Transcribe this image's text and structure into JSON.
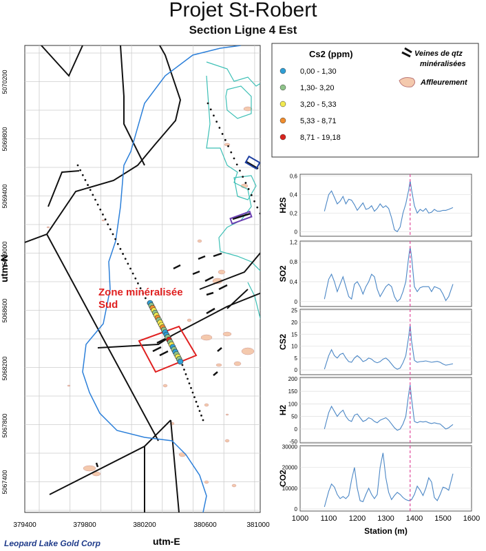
{
  "title": "Projet St-Robert",
  "subtitle": "Section Ligne 4 Est",
  "company": "Leopard Lake Gold Corp",
  "map": {
    "x_label": "utm-E",
    "y_label": "utm-N",
    "x_ticks": [
      "379400",
      "379800",
      "380200",
      "380600",
      "381000"
    ],
    "y_ticks": [
      "5070200",
      "5069800",
      "5069400",
      "5069000",
      "5068600",
      "5068200",
      "5067800",
      "5067400"
    ],
    "zone_label_line1": "Zone minéralisée",
    "zone_label_line2": "Sud",
    "colors": {
      "river": "#2b7fd9",
      "road": "#111111",
      "outline": "#3bbfb5",
      "zone": "#e02020",
      "outcrop": "#f4c9ad"
    }
  },
  "legend": {
    "title": "Cs2 (ppm)",
    "classes": [
      {
        "label": "0,00 - 1,30",
        "color": "#2f9fd6"
      },
      {
        "label": "1,30- 3,20",
        "color": "#8fc48a"
      },
      {
        "label": "3,20 - 5,33",
        "color": "#f2ea50"
      },
      {
        "label": "5,33 - 8,71",
        "color": "#f08d2e"
      },
      {
        "label": "8,71 - 19,18",
        "color": "#d9241e"
      }
    ],
    "veins_label_1": "Veines de qtz",
    "veins_label_2": "minéralisées",
    "outcrop_label": "Affleurement"
  },
  "chart_data": {
    "type": "line",
    "x_label": "Station (m)",
    "x_ticks": [
      1000,
      1100,
      1200,
      1300,
      1400,
      1500,
      1600
    ],
    "xlim": [
      1000,
      1600
    ],
    "marker_x": 1385,
    "marker_color": "#e0489a",
    "line_color": "#4a86c5",
    "panels": [
      {
        "name": "H2S",
        "ylim": [
          -0.05,
          0.62
        ],
        "ticks": [
          "0,6",
          "0,4",
          "0,2",
          "0"
        ],
        "tick_vals": [
          0.6,
          0.4,
          0.2,
          0
        ],
        "x": [
          1085,
          1100,
          1110,
          1120,
          1130,
          1140,
          1150,
          1160,
          1170,
          1180,
          1190,
          1200,
          1210,
          1220,
          1230,
          1240,
          1250,
          1260,
          1270,
          1280,
          1290,
          1300,
          1310,
          1320,
          1330,
          1340,
          1350,
          1360,
          1370,
          1380,
          1385,
          1390,
          1400,
          1410,
          1420,
          1430,
          1440,
          1450,
          1460,
          1470,
          1480,
          1490,
          1500,
          1510,
          1520,
          1535
        ],
        "values": [
          0.22,
          0.4,
          0.44,
          0.37,
          0.3,
          0.33,
          0.38,
          0.3,
          0.35,
          0.34,
          0.29,
          0.23,
          0.27,
          0.31,
          0.24,
          0.25,
          0.28,
          0.22,
          0.25,
          0.3,
          0.26,
          0.28,
          0.25,
          0.15,
          0.02,
          0.0,
          0.05,
          0.2,
          0.3,
          0.45,
          0.55,
          0.45,
          0.28,
          0.2,
          0.24,
          0.22,
          0.25,
          0.2,
          0.21,
          0.24,
          0.22,
          0.22,
          0.23,
          0.23,
          0.24,
          0.26
        ]
      },
      {
        "name": "SO2",
        "ylim": [
          -0.1,
          1.22
        ],
        "ticks": [
          "1,2",
          "0,8",
          "0,4",
          "0"
        ],
        "tick_vals": [
          1.2,
          0.8,
          0.4,
          0
        ],
        "x": [
          1085,
          1100,
          1110,
          1120,
          1130,
          1140,
          1150,
          1160,
          1170,
          1180,
          1190,
          1200,
          1210,
          1220,
          1230,
          1240,
          1250,
          1260,
          1270,
          1280,
          1290,
          1300,
          1310,
          1320,
          1330,
          1340,
          1350,
          1360,
          1370,
          1380,
          1385,
          1390,
          1400,
          1410,
          1420,
          1430,
          1440,
          1450,
          1460,
          1470,
          1480,
          1490,
          1500,
          1510,
          1520,
          1535
        ],
        "values": [
          0.05,
          0.45,
          0.55,
          0.4,
          0.2,
          0.35,
          0.5,
          0.3,
          0.1,
          0.05,
          0.35,
          0.4,
          0.3,
          0.15,
          0.3,
          0.4,
          0.55,
          0.5,
          0.25,
          0.1,
          0.2,
          0.3,
          0.35,
          0.3,
          0.1,
          0.0,
          0.05,
          0.2,
          0.4,
          0.9,
          1.1,
          0.9,
          0.3,
          0.2,
          0.28,
          0.3,
          0.3,
          0.3,
          0.2,
          0.3,
          0.28,
          0.25,
          0.15,
          0.02,
          0.1,
          0.35
        ]
      },
      {
        "name": "CS2",
        "ylim": [
          -2,
          25.5
        ],
        "ticks": [
          "25",
          "20",
          "15",
          "10",
          "5",
          "0"
        ],
        "tick_vals": [
          25,
          20,
          15,
          10,
          5,
          0
        ],
        "x": [
          1085,
          1100,
          1110,
          1120,
          1130,
          1140,
          1150,
          1160,
          1170,
          1180,
          1190,
          1200,
          1210,
          1220,
          1230,
          1240,
          1250,
          1260,
          1270,
          1280,
          1290,
          1300,
          1310,
          1320,
          1330,
          1340,
          1350,
          1360,
          1370,
          1380,
          1385,
          1390,
          1400,
          1410,
          1420,
          1430,
          1440,
          1450,
          1460,
          1470,
          1480,
          1490,
          1500,
          1510,
          1520,
          1535
        ],
        "values": [
          0.3,
          6,
          8.5,
          6,
          5,
          6.5,
          7,
          5,
          3.5,
          3.2,
          5,
          6,
          5,
          3.5,
          4,
          5,
          4.5,
          3.5,
          3,
          3.5,
          4.5,
          5,
          4,
          2.5,
          1,
          0.3,
          0.8,
          3,
          6,
          14,
          19,
          12,
          4,
          3.2,
          3.5,
          3.6,
          3.8,
          3.5,
          3.2,
          3.4,
          3.6,
          3.2,
          2.5,
          2,
          2.2,
          2.6
        ]
      },
      {
        "name": "H2",
        "ylim": [
          -55,
          205
        ],
        "ticks": [
          "200",
          "150",
          "100",
          "50",
          "0",
          "-50"
        ],
        "tick_vals": [
          200,
          150,
          100,
          50,
          0,
          -50
        ],
        "x": [
          1085,
          1100,
          1110,
          1120,
          1130,
          1140,
          1150,
          1160,
          1170,
          1180,
          1190,
          1200,
          1210,
          1220,
          1230,
          1240,
          1250,
          1260,
          1270,
          1280,
          1290,
          1300,
          1310,
          1320,
          1330,
          1340,
          1350,
          1360,
          1370,
          1380,
          1385,
          1390,
          1400,
          1410,
          1420,
          1430,
          1440,
          1450,
          1460,
          1470,
          1480,
          1490,
          1500,
          1510,
          1520,
          1535
        ],
        "values": [
          0,
          65,
          90,
          70,
          50,
          65,
          75,
          50,
          35,
          30,
          55,
          60,
          45,
          30,
          35,
          45,
          40,
          30,
          25,
          35,
          40,
          45,
          35,
          20,
          5,
          -5,
          0,
          20,
          50,
          140,
          175,
          120,
          30,
          25,
          30,
          28,
          30,
          25,
          22,
          25,
          22,
          20,
          10,
          0,
          5,
          18
        ]
      },
      {
        "name": "CO2",
        "ylim": [
          -1000,
          30500
        ],
        "ticks": [
          "30000",
          "20000",
          "10000",
          "0"
        ],
        "tick_vals": [
          30000,
          20000,
          10000,
          0
        ],
        "x": [
          1085,
          1100,
          1110,
          1120,
          1130,
          1140,
          1150,
          1160,
          1170,
          1180,
          1190,
          1200,
          1210,
          1220,
          1230,
          1240,
          1250,
          1260,
          1270,
          1280,
          1290,
          1300,
          1310,
          1320,
          1330,
          1340,
          1350,
          1360,
          1370,
          1380,
          1385,
          1390,
          1400,
          1410,
          1420,
          1430,
          1440,
          1450,
          1460,
          1470,
          1480,
          1490,
          1500,
          1510,
          1520,
          1535
        ],
        "values": [
          1000,
          8500,
          12000,
          10500,
          7000,
          5000,
          6000,
          5000,
          6500,
          14000,
          20000,
          10000,
          4000,
          3500,
          7000,
          10000,
          7000,
          5000,
          7000,
          20000,
          27000,
          15000,
          8000,
          4500,
          6500,
          8000,
          7000,
          5500,
          4500,
          4000,
          4200,
          4500,
          7000,
          11000,
          9000,
          6500,
          10000,
          15000,
          13000,
          5500,
          4000,
          7000,
          10500,
          10000,
          9000,
          17000
        ]
      }
    ]
  }
}
